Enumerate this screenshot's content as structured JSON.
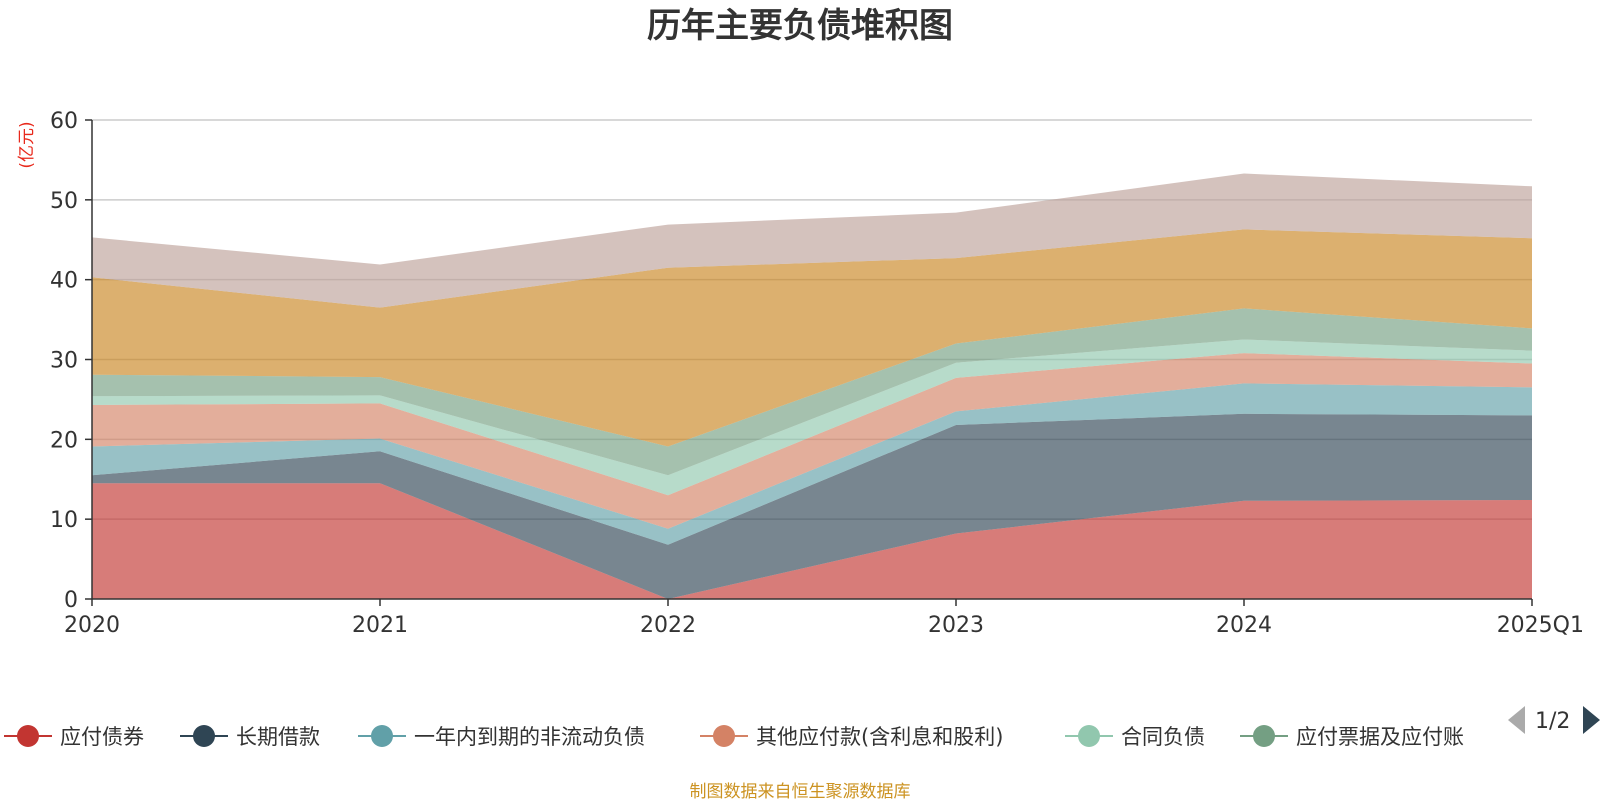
{
  "chart_data": {
    "type": "area",
    "stacked": true,
    "title": "历年主要负债堆积图",
    "unit": "(亿元)",
    "categories": [
      "2020",
      "2021",
      "2022",
      "2023",
      "2024",
      "2025Q1"
    ],
    "ylim": [
      0,
      60
    ],
    "yticks": [
      0,
      10,
      20,
      30,
      40,
      50,
      60
    ],
    "grid": true,
    "series": [
      {
        "name": "应付债券",
        "color": "#c23531",
        "values": [
          14.5,
          14.5,
          0,
          8.2,
          12.3,
          12.4
        ]
      },
      {
        "name": "长期借款",
        "color": "#2f4554",
        "values": [
          1.0,
          4.0,
          6.8,
          13.6,
          10.9,
          10.6
        ]
      },
      {
        "name": "一年内到期的非流动负债",
        "color": "#61a0a8",
        "values": [
          3.6,
          1.6,
          2.0,
          1.7,
          3.8,
          3.5
        ]
      },
      {
        "name": "其他应付款(含利息和股利)",
        "color": "#d48265",
        "values": [
          5.2,
          4.4,
          4.2,
          4.2,
          3.8,
          3.0
        ]
      },
      {
        "name": "合同负债",
        "color": "#91c7ae",
        "values": [
          1.1,
          1.0,
          2.5,
          1.9,
          1.7,
          1.6
        ]
      },
      {
        "name": "应付票据及应付账款",
        "color": "#749f83",
        "values": [
          2.7,
          2.3,
          3.6,
          2.4,
          3.9,
          2.8
        ]
      },
      {
        "name": "",
        "color": "#ca8622",
        "values": [
          12.2,
          8.7,
          22.4,
          10.7,
          9.9,
          11.3
        ]
      },
      {
        "name": "",
        "color": "#bda29a",
        "values": [
          5.0,
          5.4,
          5.4,
          5.7,
          7.0,
          6.5
        ]
      }
    ],
    "legend_position": "bottom",
    "legend_visible_count": 6
  },
  "legend": {
    "page_label": "1/2",
    "items": [
      "应付债券",
      "长期借款",
      "一年内到期的非流动负债",
      "其他应付款(含利息和股利)",
      "合同负债",
      "应付票据及应付账"
    ]
  },
  "source_text": "制图数据来自恒生聚源数据库",
  "colors": {
    "text": "#333333",
    "grid": "#cccccc",
    "axis": "#333333",
    "unit": "#e8281b",
    "source": "#cc9322",
    "pager_inactive": "#aaaaaa",
    "pager_active": "#2f4554"
  }
}
